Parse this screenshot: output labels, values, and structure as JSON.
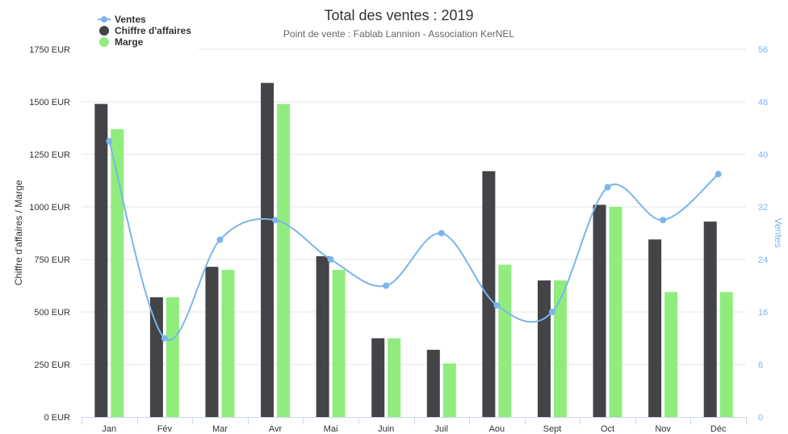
{
  "chart_data": {
    "type": "bar",
    "title": "Total des ventes : 2019",
    "subtitle": "Point de vente : Fablab Lannion - Association KerNEL",
    "categories": [
      "Jan",
      "Fév",
      "Mar",
      "Avr",
      "Mai",
      "Juin",
      "Juil",
      "Aou",
      "Sept",
      "Oct",
      "Nov",
      "Déc"
    ],
    "series": [
      {
        "name": "Chiffre d'affaires",
        "kind": "bar",
        "axis": "left",
        "color": "#434348",
        "values": [
          1490,
          570,
          715,
          1590,
          765,
          375,
          320,
          1170,
          650,
          1010,
          845,
          930
        ]
      },
      {
        "name": "Marge",
        "kind": "bar",
        "axis": "left",
        "color": "#90ed7d",
        "values": [
          1370,
          570,
          700,
          1490,
          700,
          375,
          255,
          725,
          650,
          1000,
          595,
          595
        ]
      },
      {
        "name": "Ventes",
        "kind": "line",
        "axis": "right",
        "color": "#7cb5ec",
        "values": [
          42,
          12,
          27,
          30,
          24,
          20,
          28,
          17,
          16,
          35,
          30,
          37
        ]
      }
    ],
    "y_left": {
      "label": "Chiffre d'affaires / Marge",
      "min": 0,
      "max": 1750,
      "ticks": [
        0,
        250,
        500,
        750,
        1000,
        1250,
        1500,
        1750
      ],
      "tick_labels": [
        "0 EUR",
        "250 EUR",
        "500 EUR",
        "750 EUR",
        "1000 EUR",
        "1250 EUR",
        "1500 EUR",
        "1750 EUR"
      ]
    },
    "y_right": {
      "label": "Ventes",
      "min": 0,
      "max": 56,
      "ticks": [
        0,
        8,
        16,
        24,
        32,
        40,
        48,
        56
      ],
      "tick_labels": [
        "0",
        "8",
        "16",
        "24",
        "32",
        "40",
        "48",
        "56"
      ]
    },
    "grid": true,
    "legend_position": "top-left",
    "legend": [
      "Ventes",
      "Chiffre d'affaires",
      "Marge"
    ]
  }
}
